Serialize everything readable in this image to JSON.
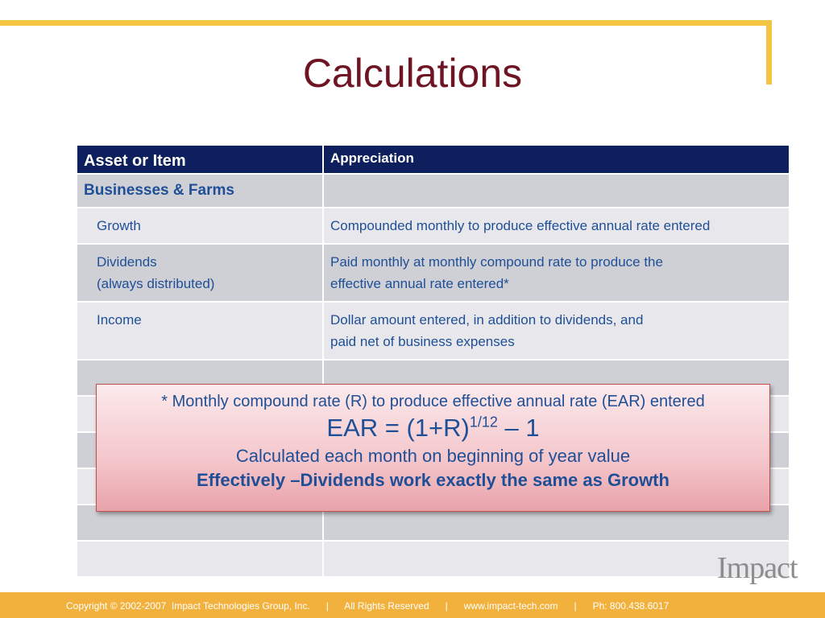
{
  "slide": {
    "title": "Calculations",
    "logo_text": "Impact",
    "footer_text": "Copyright © 2002-2007  Impact Technologies Group, Inc.      |      All Rights Reserved      |      www.impact-tech.com      |      Ph: 800.438.6017"
  },
  "colors": {
    "title": "#6e1422",
    "header_bg": "#0d1f5c",
    "text_blue": "#1f4f96",
    "gold": "#f4c542",
    "footer_bg": "#f2b13c"
  },
  "table": {
    "headers": [
      "Asset or Item",
      "Appreciation"
    ],
    "section": "Businesses & Farms",
    "rows": [
      {
        "item": "Growth",
        "item_line2": "",
        "value": "Compounded monthly to produce effective annual rate entered",
        "value_line2": ""
      },
      {
        "item": "Dividends",
        "item_line2": "(always distributed)",
        "value": "Paid monthly at monthly compound rate to produce the",
        "value_line2": "effective annual rate entered*"
      },
      {
        "item": "Income",
        "item_line2": "",
        "value": "Dollar amount entered, in addition to dividends, and",
        "value_line2": "paid net of business expenses"
      }
    ]
  },
  "callout": {
    "line1": "* Monthly compound rate (R) to produce effective annual rate (EAR) entered",
    "formula_base": "EAR = (1+R)",
    "formula_exponent": "1/12",
    "formula_tail": " – 1",
    "line3": "Calculated each month on beginning of year value",
    "line4": "Effectively –Dividends work exactly the same as Growth"
  }
}
